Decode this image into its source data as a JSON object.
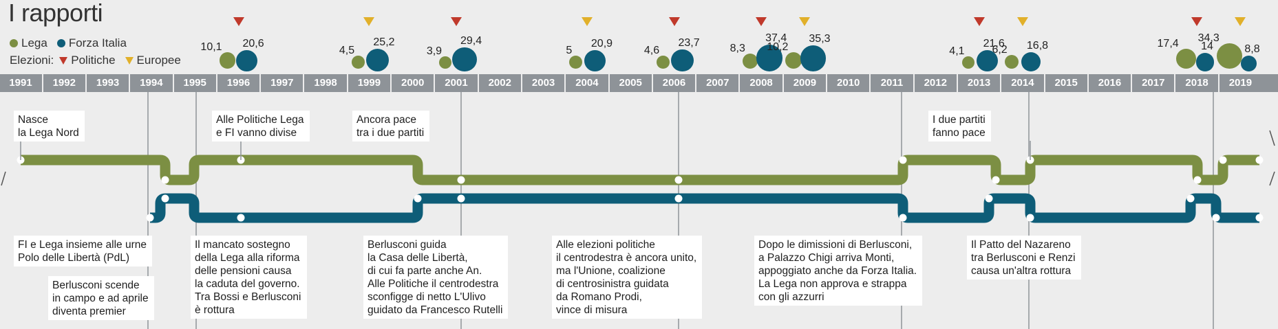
{
  "title": "I rapporti",
  "legend": {
    "lega": {
      "label": "Lega",
      "color": "#7c8f43"
    },
    "fi": {
      "label": "Forza Italia",
      "color": "#0e5d78"
    },
    "elections_label": "Elezioni:",
    "politiche": {
      "label": "Politiche",
      "color": "#c0392b"
    },
    "europee": {
      "label": "Europee",
      "color": "#e1b02a"
    }
  },
  "years": [
    "1991",
    "1992",
    "1993",
    "1994",
    "1995",
    "1996",
    "1997",
    "1998",
    "1999",
    "2000",
    "2001",
    "2002",
    "2003",
    "2004",
    "2005",
    "2006",
    "2007",
    "2008",
    "2009",
    "2010",
    "2011",
    "2012",
    "2013",
    "2014",
    "2015",
    "2016",
    "2017",
    "2018",
    "2019"
  ],
  "results": [
    {
      "year": 1996,
      "type": "politiche",
      "lega": "10,1",
      "fi": "20,6"
    },
    {
      "year": 1999,
      "type": "europee",
      "lega": "4,5",
      "fi": "25,2"
    },
    {
      "year": 2001,
      "type": "politiche",
      "lega": "3,9",
      "fi": "29,4"
    },
    {
      "year": 2004,
      "type": "europee",
      "lega": "5",
      "fi": "20,9"
    },
    {
      "year": 2006,
      "type": "politiche",
      "lega": "4,6",
      "fi": "23,7"
    },
    {
      "year": 2008,
      "type": "politiche",
      "lega": "8,3",
      "fi": "37,4"
    },
    {
      "year": 2009,
      "type": "europee",
      "lega": "10,2",
      "fi": "35,3"
    },
    {
      "year": 2013,
      "type": "politiche",
      "lega": "4,1",
      "fi": "21,6"
    },
    {
      "year": 2014,
      "type": "europee",
      "lega": "6,2",
      "fi": "16,8"
    },
    {
      "year": 2018,
      "type": "politiche",
      "lega": "17,4",
      "fi": "14"
    },
    {
      "year": 2019,
      "type": "europee",
      "lega": "34,3",
      "fi": "8,8"
    }
  ],
  "events_top": [
    {
      "id": "nasce",
      "lines": [
        "Nasce",
        "la Lega Nord"
      ]
    },
    {
      "id": "divise",
      "lines": [
        "Alle Politiche Lega",
        "e FI vanno divise"
      ]
    },
    {
      "id": "pace99",
      "lines": [
        "Ancora pace",
        "tra i due partiti"
      ]
    },
    {
      "id": "pace13",
      "lines": [
        "I due partiti",
        "fanno pace"
      ]
    }
  ],
  "events_bottom": [
    {
      "id": "polo",
      "lines": [
        "FI e Lega insieme alle urne",
        "Polo delle Libertà (PdL)"
      ]
    },
    {
      "id": "scende",
      "lines": [
        "Berlusconi scende",
        "in campo e ad aprile",
        "diventa premier"
      ]
    },
    {
      "id": "rottura95",
      "lines": [
        "Il mancato sostegno",
        "della Lega alla riforma",
        "delle pensioni causa",
        "la caduta del governo.",
        "Tra Bossi e Berlusconi",
        "è rottura"
      ]
    },
    {
      "id": "casa",
      "lines": [
        "Berlusconi guida",
        "la Casa delle Libertà,",
        "di cui fa parte anche An.",
        "Alle Politiche il centrodestra",
        "sconfigge di netto L'Ulivo",
        "guidato da Francesco Rutelli"
      ]
    },
    {
      "id": "prodi",
      "lines": [
        "Alle elezioni politiche",
        "il centrodestra è ancora unito,",
        "ma l'Unione, coalizione",
        "di centrosinistra guidata",
        "da Romano Prodi,",
        "vince di misura"
      ]
    },
    {
      "id": "monti",
      "lines": [
        "Dopo le dimissioni di Berlusconi,",
        "a Palazzo Chigi arriva Monti,",
        "appoggiato anche da Forza Italia.",
        "La Lega non approva e strappa",
        "con gli azzurri"
      ]
    },
    {
      "id": "nazareno",
      "lines": [
        "Il Patto del Nazareno",
        "tra Berlusconi e Renzi",
        "causa un'altra rottura"
      ]
    }
  ]
}
